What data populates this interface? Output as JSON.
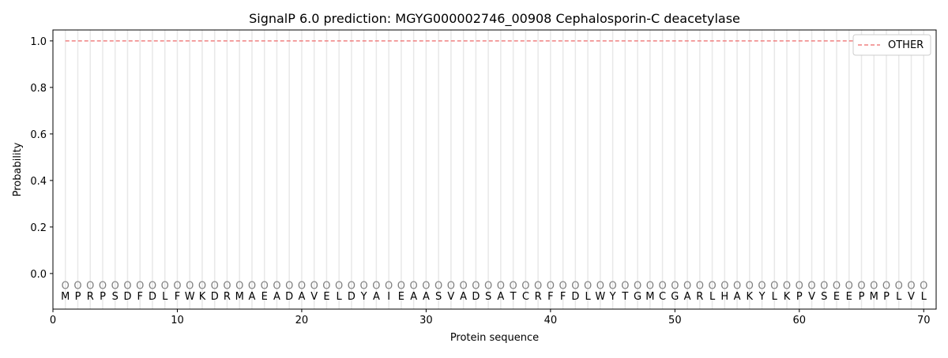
{
  "chart_data": {
    "type": "line",
    "title": "SignalP 6.0 prediction: MGYG000002746_00908 Cephalosporin-C deacetylase",
    "xlabel": "Protein sequence",
    "ylabel": "Probability",
    "xlim": [
      0,
      71
    ],
    "ylim": [
      -0.153,
      1.047
    ],
    "xticks": [
      0,
      10,
      20,
      30,
      40,
      50,
      60,
      70
    ],
    "yticks": [
      "0.0",
      "0.2",
      "0.4",
      "0.6",
      "0.8",
      "1.0"
    ],
    "grid": "vertical lines at each residue",
    "legend_position": "top-right",
    "sequence": [
      "M",
      "P",
      "R",
      "P",
      "S",
      "D",
      "F",
      "D",
      "L",
      "F",
      "W",
      "K",
      "D",
      "R",
      "M",
      "A",
      "E",
      "A",
      "D",
      "A",
      "V",
      "E",
      "L",
      "D",
      "Y",
      "A",
      "I",
      "E",
      "A",
      "A",
      "S",
      "V",
      "A",
      "D",
      "S",
      "A",
      "T",
      "C",
      "R",
      "F",
      "F",
      "D",
      "L",
      "W",
      "Y",
      "T",
      "G",
      "M",
      "C",
      "G",
      "A",
      "R",
      "L",
      "H",
      "A",
      "K",
      "Y",
      "L",
      "K",
      "P",
      "V",
      "S",
      "E",
      "E",
      "P",
      "M",
      "P",
      "L",
      "V",
      "L"
    ],
    "predicted_labels": "OOOOOOOOOOOOOOOOOOOOOOOOOOOOOOOOOOOOOOOOOOOOOOOOOOOOOOOOOOOOOOOOOOOOOO",
    "series": [
      {
        "name": "OTHER",
        "color": "#f08080",
        "style": "dashed",
        "x_start": 1,
        "x_end": 70,
        "value": 1.0
      }
    ]
  }
}
